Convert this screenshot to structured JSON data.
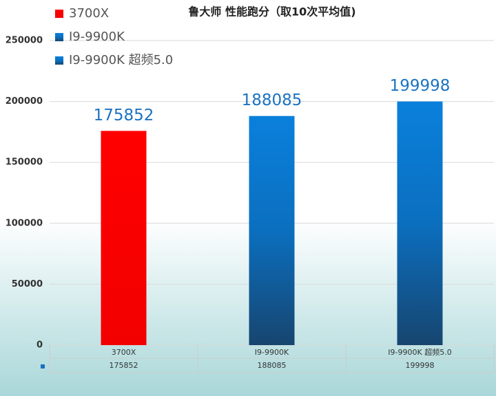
{
  "chart_data": {
    "type": "bar",
    "title": "鲁大师 性能跑分（取10次平均值)",
    "categories": [
      "3700X",
      "I9-9900K",
      "I9-9900K 超频5.0"
    ],
    "values": [
      175852,
      188085,
      199998
    ],
    "colors": [
      "#ff0000",
      "#0a78d2",
      "#0a78d2"
    ],
    "ylim": [
      0,
      250000
    ],
    "yticks": [
      0,
      50000,
      100000,
      150000,
      200000,
      250000
    ],
    "grid": true
  }
}
